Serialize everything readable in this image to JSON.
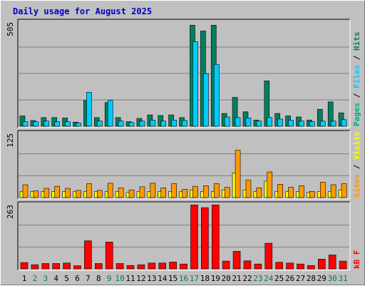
{
  "title": "Daily usage for August 2025",
  "colors": {
    "pages": "#00aa88",
    "files": "#00ccff",
    "hits": "#008060",
    "sites": "#ff9900",
    "visits": "#ffff00",
    "kbytes": "#ff0000",
    "weekday_label": "#000000",
    "weekend_label": "#008040"
  },
  "chart_data": [
    {
      "type": "bar",
      "name": "hits-files-pages",
      "ymax_label": "505",
      "ylim": [
        0,
        505
      ],
      "legend": [
        "Pages",
        "/",
        "Files",
        "/",
        "Hits"
      ],
      "categories": [
        "1",
        "2",
        "3",
        "4",
        "5",
        "6",
        "7",
        "8",
        "9",
        "10",
        "11",
        "12",
        "13",
        "14",
        "15",
        "16",
        "17",
        "18",
        "19",
        "20",
        "21",
        "22",
        "23",
        "24",
        "25",
        "26",
        "27",
        "28",
        "29",
        "30",
        "31"
      ],
      "series": [
        {
          "name": "Hits",
          "values": [
            50,
            28,
            42,
            42,
            40,
            20,
            125,
            42,
            115,
            42,
            22,
            38,
            55,
            52,
            55,
            42,
            490,
            462,
            490,
            62,
            140,
            70,
            30,
            220,
            62,
            50,
            45,
            30,
            82,
            118,
            65
          ]
        },
        {
          "name": "Files",
          "values": [
            22,
            22,
            25,
            22,
            22,
            15,
            165,
            25,
            125,
            25,
            18,
            25,
            30,
            25,
            30,
            28,
            410,
            255,
            300,
            45,
            42,
            40,
            25,
            42,
            35,
            30,
            25,
            22,
            25,
            25,
            32
          ]
        },
        {
          "name": "Pages",
          "values": [
            0,
            0,
            0,
            0,
            0,
            0,
            0,
            0,
            0,
            0,
            0,
            0,
            0,
            0,
            0,
            0,
            0,
            0,
            0,
            0,
            0,
            0,
            0,
            0,
            0,
            0,
            0,
            0,
            0,
            0,
            0
          ]
        }
      ]
    },
    {
      "type": "bar",
      "name": "visits-sites",
      "ymax_label": "125",
      "ylim": [
        0,
        125
      ],
      "legend": [
        "Sites",
        "/",
        "Visits"
      ],
      "categories": [
        "1",
        "2",
        "3",
        "4",
        "5",
        "6",
        "7",
        "8",
        "9",
        "10",
        "11",
        "12",
        "13",
        "14",
        "15",
        "16",
        "17",
        "18",
        "19",
        "20",
        "21",
        "22",
        "23",
        "24",
        "25",
        "26",
        "27",
        "28",
        "29",
        "30",
        "31"
      ],
      "series": [
        {
          "name": "Visits",
          "values": [
            12,
            12,
            12,
            12,
            12,
            12,
            12,
            12,
            12,
            12,
            10,
            12,
            12,
            12,
            12,
            12,
            15,
            12,
            12,
            15,
            48,
            15,
            12,
            32,
            12,
            12,
            12,
            10,
            12,
            12,
            15
          ]
        },
        {
          "name": "Sites",
          "values": [
            25,
            13,
            18,
            22,
            18,
            14,
            27,
            14,
            28,
            19,
            15,
            21,
            28,
            19,
            27,
            16,
            22,
            23,
            27,
            20,
            92,
            34,
            19,
            50,
            26,
            20,
            23,
            12,
            30,
            25,
            27
          ]
        }
      ]
    },
    {
      "type": "bar",
      "name": "kbytes",
      "ymax_label": "263",
      "ylim": [
        0,
        263
      ],
      "legend": [
        "kB",
        "F"
      ],
      "categories": [
        "1",
        "2",
        "3",
        "4",
        "5",
        "6",
        "7",
        "8",
        "9",
        "10",
        "11",
        "12",
        "13",
        "14",
        "15",
        "16",
        "17",
        "18",
        "19",
        "20",
        "21",
        "22",
        "23",
        "24",
        "25",
        "26",
        "27",
        "28",
        "29",
        "30",
        "31"
      ],
      "series": [
        {
          "name": "kB F",
          "values": [
            26,
            17,
            22,
            22,
            24,
            13,
            115,
            22,
            110,
            22,
            14,
            17,
            24,
            24,
            28,
            20,
            262,
            251,
            262,
            32,
            72,
            33,
            20,
            105,
            27,
            24,
            20,
            14,
            40,
            57,
            32
          ]
        }
      ]
    }
  ],
  "weekend_days": [
    "2",
    "3",
    "9",
    "10",
    "16",
    "17",
    "23",
    "24",
    "30",
    "31"
  ]
}
